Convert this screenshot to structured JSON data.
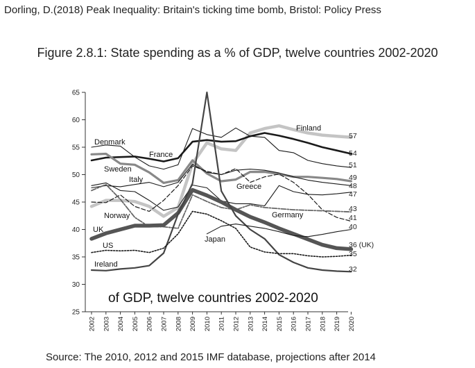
{
  "header": {
    "citation": "Dorling, D.(2018) Peak Inequality: Britain's  ticking time bomb, Bristol: Policy Press"
  },
  "footer": {
    "source": "Source: The 2010, 2012 and 2015 IMF database, projections after 2014"
  },
  "chart_data": {
    "type": "line",
    "title": "Figure 2.8.1: State spending as a % of GDP, twelve countries 2002-2020",
    "overlay_caption": "of GDP, twelve countries 2002-2020",
    "xlabel": "",
    "ylabel": "",
    "ylim": [
      25,
      65
    ],
    "yticks": [
      25,
      30,
      35,
      40,
      45,
      50,
      55,
      60,
      65
    ],
    "x": [
      "2002",
      "2003",
      "2004",
      "2005",
      "2006",
      "2007",
      "2008",
      "2009",
      "2010",
      "2011",
      "2012",
      "2013",
      "2014",
      "2015",
      "2016",
      "2017",
      "2018",
      "2019",
      "2020"
    ],
    "series": [
      {
        "name": "Finland",
        "end_label": "57",
        "color": "#c4c4c4",
        "width": 4.5,
        "dash": "",
        "values": [
          44.2,
          45.3,
          45.3,
          45.1,
          44.2,
          42.4,
          44.0,
          52.0,
          55.8,
          54.7,
          54.4,
          57.6,
          58.4,
          58.9,
          58.2,
          57.6,
          57.2,
          57.0,
          56.8
        ]
      },
      {
        "name": "France",
        "end_label": "54",
        "color": "#1a1a1a",
        "width": 2.6,
        "dash": "",
        "values": [
          52.6,
          53.1,
          53.2,
          53.3,
          52.9,
          52.4,
          53.0,
          56.0,
          56.3,
          56.0,
          56.1,
          57.0,
          57.6,
          57.1,
          56.5,
          55.8,
          55.0,
          54.4,
          53.8
        ]
      },
      {
        "name": "Denmark",
        "end_label": "51",
        "color": "#1a1a1a",
        "width": 1.1,
        "dash": "",
        "values": [
          55.0,
          55.4,
          55.2,
          53.2,
          51.6,
          51.0,
          51.8,
          58.4,
          57.3,
          56.8,
          58.5,
          57.0,
          56.8,
          54.4,
          54.0,
          52.6,
          52.0,
          51.6,
          51.3
        ]
      },
      {
        "name": "Sweden",
        "end_label": "49",
        "color": "#888888",
        "width": 3.2,
        "dash": "",
        "values": [
          53.7,
          53.8,
          52.0,
          51.8,
          50.4,
          48.5,
          49.0,
          52.6,
          50.2,
          48.8,
          49.1,
          50.5,
          50.5,
          50.1,
          49.6,
          49.6,
          49.4,
          49.2,
          48.8
        ]
      },
      {
        "name": "Italy",
        "end_label": "48",
        "color": "#1a1a1a",
        "width": 1.1,
        "dash": "",
        "values": [
          47.6,
          48.0,
          47.8,
          48.2,
          48.6,
          47.8,
          48.6,
          51.9,
          50.4,
          50.0,
          50.8,
          51.0,
          50.8,
          50.3,
          49.6,
          49.0,
          48.6,
          48.3,
          48.0
        ]
      },
      {
        "name": "Germany",
        "end_label": "47",
        "color": "#1a1a1a",
        "width": 1.1,
        "dash": "",
        "values": [
          48.0,
          48.5,
          47.1,
          46.9,
          45.3,
          43.5,
          44.1,
          48.1,
          47.6,
          45.2,
          44.7,
          44.7,
          44.3,
          48.0,
          46.9,
          46.4,
          46.3,
          46.5,
          46.8
        ]
      },
      {
        "name": "Greece",
        "end_label": "41",
        "color": "#1a1a1a",
        "width": 1.2,
        "dash": "6,3",
        "values": [
          45.0,
          44.9,
          46.3,
          44.2,
          43.3,
          45.3,
          48.0,
          51.6,
          50.6,
          50.0,
          51.1,
          48.6,
          49.6,
          50.1,
          48.6,
          46.4,
          43.6,
          42.2,
          41.5
        ]
      },
      {
        "name": "Norway",
        "end_label": "43",
        "color": "#666666",
        "width": 1.8,
        "dash": "7,2,2,2",
        "values": [
          47.1,
          48.2,
          45.5,
          42.2,
          40.5,
          40.5,
          40.2,
          46.3,
          45.1,
          44.0,
          43.6,
          44.5,
          44.0,
          43.8,
          43.6,
          43.5,
          43.4,
          43.3,
          43.2
        ]
      },
      {
        "name": "UK",
        "end_label": "36 (UK)",
        "color": "#555555",
        "width": 5.5,
        "dash": "",
        "values": [
          38.3,
          39.3,
          40.0,
          40.7,
          40.7,
          40.8,
          43.0,
          47.2,
          46.2,
          45.0,
          43.6,
          42.3,
          41.3,
          40.2,
          39.2,
          38.2,
          37.2,
          36.6,
          36.4
        ]
      },
      {
        "name": "Ireland",
        "end_label": "32",
        "color": "#444444",
        "width": 2.2,
        "dash": "",
        "values": [
          32.6,
          32.5,
          32.8,
          33.0,
          33.4,
          35.7,
          42.8,
          48.4,
          65.0,
          47.0,
          42.5,
          40.0,
          38.3,
          35.4,
          34.0,
          33.0,
          32.6,
          32.4,
          32.3
        ]
      },
      {
        "name": "US",
        "end_label": "35",
        "color": "#1a1a1a",
        "width": 1.6,
        "dash": "2,2",
        "values": [
          35.8,
          36.2,
          36.1,
          36.2,
          35.8,
          36.6,
          39.2,
          43.3,
          42.8,
          41.6,
          40.2,
          36.8,
          35.9,
          35.6,
          35.6,
          35.2,
          35.0,
          35.1,
          35.3
        ]
      },
      {
        "name": "Japan",
        "end_label": "40",
        "color": "#1a1a1a",
        "width": 1.1,
        "dash": "",
        "start_index": 8,
        "values": [
          null,
          null,
          null,
          null,
          null,
          null,
          null,
          null,
          39.2,
          40.6,
          41.0,
          40.6,
          40.2,
          39.6,
          38.9,
          38.7,
          39.1,
          39.6,
          40.0
        ]
      }
    ],
    "inline_labels": [
      "Finland",
      "Denmark",
      "France",
      "Sweden",
      "Italy",
      "Greece",
      "Norway",
      "Germany",
      "UK",
      "US",
      "Japan",
      "Ireland"
    ]
  }
}
